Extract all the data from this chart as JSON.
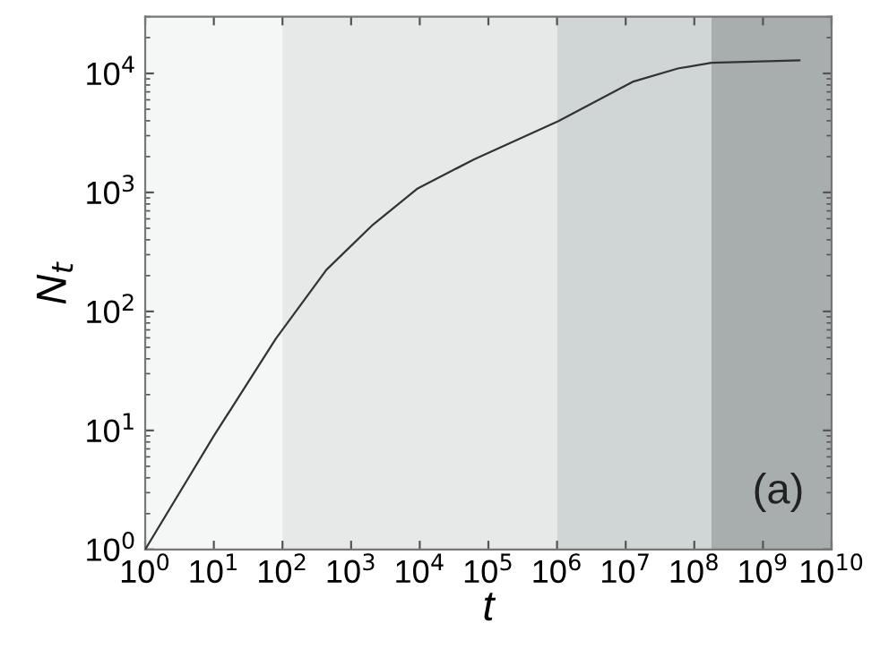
{
  "chart_data": {
    "type": "line",
    "xlabel": "t",
    "ylabel": "N$_{t}$",
    "annotations": [
      "(a)"
    ],
    "log": "xy",
    "xlim": [
      1,
      10000000000
    ],
    "ylim": [
      1,
      30000
    ],
    "xticks": [
      {
        "value": 1,
        "label": "10$^{0}$"
      },
      {
        "value": 10,
        "label": "10$^{1}$"
      },
      {
        "value": 100,
        "label": "10$^{2}$"
      },
      {
        "value": 1000,
        "label": "10$^{3}$"
      },
      {
        "value": 10000,
        "label": "10$^{4}$"
      },
      {
        "value": 100000,
        "label": "10$^{5}$"
      },
      {
        "value": 1000000,
        "label": "10$^{6}$"
      },
      {
        "value": 10000000,
        "label": "10$^{7}$"
      },
      {
        "value": 100000000,
        "label": "10$^{8}$"
      },
      {
        "value": 1000000000,
        "label": "10$^{9}$"
      },
      {
        "value": 10000000000,
        "label": "10$^{10}$"
      }
    ],
    "yticks": [
      {
        "value": 1,
        "label": "10$^{0}$"
      },
      {
        "value": 10,
        "label": "10$^{1}$"
      },
      {
        "value": 100,
        "label": "10$^{2}$"
      },
      {
        "value": 1000,
        "label": "10$^{3}$"
      },
      {
        "value": 10000,
        "label": "10$^{4}$"
      }
    ],
    "x": [
      1,
      10,
      80,
      437,
      2000,
      9100,
      62000,
      1050000,
      12600000,
      57500000,
      178000000,
      3400000000
    ],
    "series": [
      {
        "color": "#333333",
        "values": [
          1,
          9,
          59,
          224,
          525,
          1070,
          1900,
          3980,
          8500,
          11000,
          12300,
          12900
        ]
      }
    ],
    "bands": [
      {
        "axis": "x",
        "from": 1,
        "to": 100,
        "color": "#f5f6f6"
      },
      {
        "axis": "x",
        "from": 100,
        "to": 1000000,
        "color": "#e7e9e9"
      },
      {
        "axis": "x",
        "from": 1000000,
        "to": 178000000,
        "color": "#d0d5d5"
      },
      {
        "axis": "x",
        "from": 178000000,
        "to": 10000000000,
        "color": "#a8adad"
      }
    ],
    "grid": false,
    "marker": "none",
    "line_style": "solid"
  }
}
